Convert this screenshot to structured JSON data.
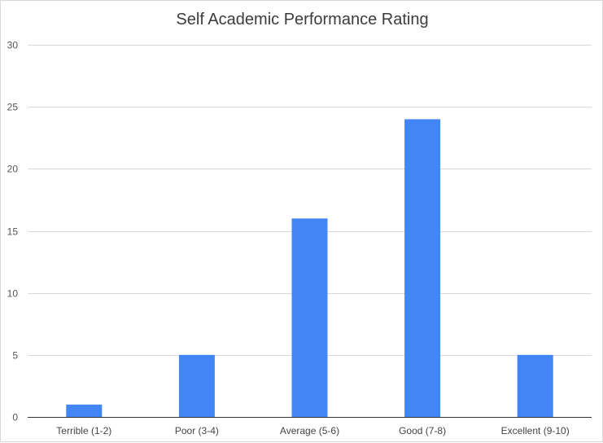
{
  "chart_data": {
    "type": "bar",
    "title": "Self Academic Performance Rating",
    "categories": [
      "Terrible (1-2)",
      "Poor (3-4)",
      "Average (5-6)",
      "Good (7-8)",
      "Excellent (9-10)"
    ],
    "values": [
      1,
      5,
      16,
      24,
      5
    ],
    "ylim": [
      0,
      30
    ],
    "yticks": [
      0,
      5,
      10,
      15,
      20,
      25,
      30
    ],
    "grid": true,
    "legend": "none",
    "bar_color": "#4285f4",
    "gridline_color": "#d9d9d9"
  }
}
